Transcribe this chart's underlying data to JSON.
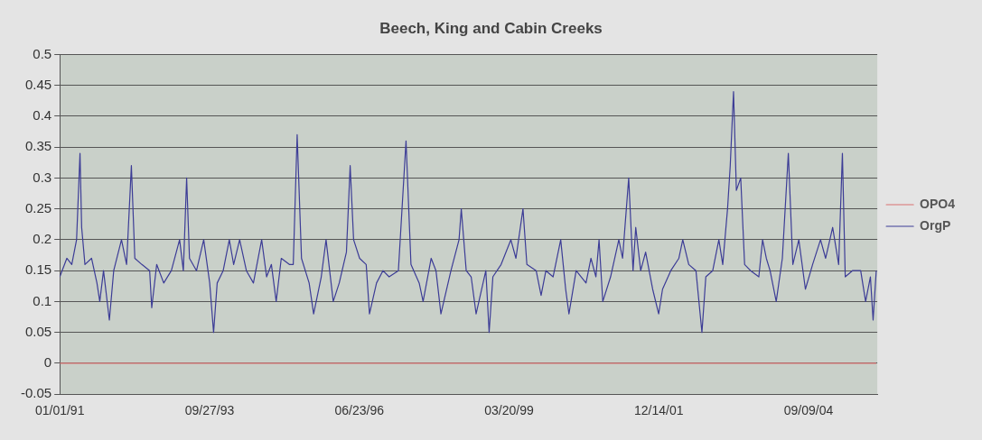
{
  "chart_data": {
    "type": "line",
    "title": "Beech, King and Cabin Creeks",
    "xlim": [
      "1991-01-01",
      "2005-12-12"
    ],
    "xticks": [
      {
        "value": "1991-01-01",
        "label": "01/01/91"
      },
      {
        "value": "1993-09-27",
        "label": "09/27/93"
      },
      {
        "value": "1996-06-23",
        "label": "06/23/96"
      },
      {
        "value": "1999-03-20",
        "label": "03/20/99"
      },
      {
        "value": "2001-12-14",
        "label": "12/14/01"
      },
      {
        "value": "2004-09-09",
        "label": "09/09/04"
      }
    ],
    "ylim": [
      -0.05,
      0.5
    ],
    "yticks": [
      -0.05,
      0,
      0.05,
      0.1,
      0.15,
      0.2,
      0.25,
      0.3,
      0.35,
      0.4,
      0.45,
      0.5
    ],
    "grid": "y",
    "legend": "right",
    "marker": "none",
    "line_style": "solid",
    "series": [
      {
        "name": "OPO4",
        "color": "#d97070",
        "x": [
          "1991-01-01",
          "1998-07-01",
          "2005-12-05"
        ],
        "values": [
          0,
          0,
          0
        ]
      },
      {
        "name": "OrgP",
        "color": "#3c3c96",
        "x": [
          "1991-01-01",
          "1991-02-17",
          "1991-03-22",
          "1991-04-23",
          "1991-05-16",
          "1991-05-27",
          "1991-06-18",
          "1991-08-01",
          "1991-09-06",
          "1991-09-25",
          "1991-10-20",
          "1991-11-28",
          "1991-12-27",
          "1992-02-17",
          "1992-03-22",
          "1992-04-23",
          "1992-05-16",
          "1992-07-02",
          "1992-08-23",
          "1992-09-06",
          "1992-10-09",
          "1992-11-25",
          "1993-01-15",
          "1993-03-11",
          "1993-04-05",
          "1993-04-27",
          "1993-05-16",
          "1993-07-02",
          "1993-08-19",
          "1993-09-28",
          "1993-10-24",
          "1993-11-17",
          "1993-12-27",
          "1994-02-06",
          "1994-03-07",
          "1994-04-16",
          "1994-05-31",
          "1994-07-17",
          "1994-09-10",
          "1994-10-13",
          "1994-11-14",
          "1994-12-16",
          "1995-01-19",
          "1995-03-14",
          "1995-04-09",
          "1995-05-05",
          "1995-06-03",
          "1995-07-24",
          "1995-08-23",
          "1995-10-13",
          "1995-11-14",
          "1996-01-01",
          "1996-02-10",
          "1996-03-29",
          "1996-04-23",
          "1996-05-16",
          "1996-06-25",
          "1996-08-08",
          "1996-08-30",
          "1996-10-16",
          "1996-11-28",
          "1997-01-08",
          "1997-03-11",
          "1997-05-01",
          "1997-06-03",
          "1997-07-28",
          "1997-08-23",
          "1997-10-16",
          "1997-11-17",
          "1997-12-20",
          "1998-02-25",
          "1998-04-20",
          "1998-05-05",
          "1998-06-07",
          "1998-07-10",
          "1998-08-12",
          "1998-10-16",
          "1998-11-07",
          "1998-12-02",
          "1999-01-26",
          "1999-04-01",
          "1999-05-05",
          "1999-06-21",
          "1999-07-17",
          "1999-09-17",
          "1999-10-20",
          "1999-11-21",
          "2000-01-08",
          "2000-02-28",
          "2000-04-01",
          "2000-04-23",
          "2000-06-10",
          "2000-08-15",
          "2000-09-17",
          "2000-10-20",
          "2000-11-10",
          "2000-12-05",
          "2001-01-26",
          "2001-03-22",
          "2001-04-16",
          "2001-05-27",
          "2001-06-25",
          "2001-07-13",
          "2001-08-15",
          "2001-09-17",
          "2001-11-03",
          "2001-12-13",
          "2002-01-08",
          "2002-03-04",
          "2002-04-27",
          "2002-05-23",
          "2002-07-02",
          "2002-08-19",
          "2002-09-28",
          "2002-10-24",
          "2002-12-09",
          "2003-01-19",
          "2003-02-14",
          "2003-03-18",
          "2003-04-05",
          "2003-04-27",
          "2003-05-16",
          "2003-06-14",
          "2003-07-10",
          "2003-08-19",
          "2003-10-13",
          "2003-11-07",
          "2003-12-02",
          "2003-12-27",
          "2004-02-06",
          "2004-03-18",
          "2004-04-27",
          "2004-05-27",
          "2004-07-06",
          "2004-08-19",
          "2004-10-06",
          "2004-11-28",
          "2005-01-01",
          "2005-02-17",
          "2005-03-29",
          "2005-04-23",
          "2005-05-12",
          "2005-06-29",
          "2005-08-23",
          "2005-09-25",
          "2005-10-27",
          "2005-11-14",
          "2005-12-05"
        ],
        "values": [
          0.14,
          0.17,
          0.16,
          0.2,
          0.34,
          0.22,
          0.16,
          0.17,
          0.13,
          0.1,
          0.15,
          0.07,
          0.15,
          0.2,
          0.16,
          0.32,
          0.17,
          0.16,
          0.15,
          0.09,
          0.16,
          0.13,
          0.15,
          0.2,
          0.15,
          0.3,
          0.17,
          0.15,
          0.2,
          0.13,
          0.05,
          0.13,
          0.15,
          0.2,
          0.16,
          0.2,
          0.15,
          0.13,
          0.2,
          0.14,
          0.16,
          0.1,
          0.17,
          0.16,
          0.16,
          0.37,
          0.17,
          0.13,
          0.08,
          0.14,
          0.2,
          0.1,
          0.13,
          0.18,
          0.32,
          0.2,
          0.17,
          0.16,
          0.08,
          0.13,
          0.15,
          0.14,
          0.15,
          0.36,
          0.16,
          0.13,
          0.1,
          0.17,
          0.15,
          0.08,
          0.15,
          0.2,
          0.25,
          0.15,
          0.14,
          0.08,
          0.15,
          0.05,
          0.14,
          0.16,
          0.2,
          0.17,
          0.25,
          0.16,
          0.15,
          0.11,
          0.15,
          0.14,
          0.2,
          0.12,
          0.08,
          0.15,
          0.13,
          0.17,
          0.14,
          0.2,
          0.1,
          0.14,
          0.2,
          0.17,
          0.3,
          0.15,
          0.22,
          0.15,
          0.18,
          0.12,
          0.08,
          0.12,
          0.15,
          0.17,
          0.2,
          0.16,
          0.15,
          0.05,
          0.14,
          0.15,
          0.2,
          0.16,
          0.25,
          0.32,
          0.44,
          0.28,
          0.3,
          0.16,
          0.15,
          0.14,
          0.2,
          0.17,
          0.15,
          0.1,
          0.17,
          0.34,
          0.16,
          0.2,
          0.12,
          0.16,
          0.2,
          0.17,
          0.22,
          0.16,
          0.34,
          0.14,
          0.15,
          0.15,
          0.1,
          0.14,
          0.07,
          0.15
        ]
      }
    ]
  }
}
